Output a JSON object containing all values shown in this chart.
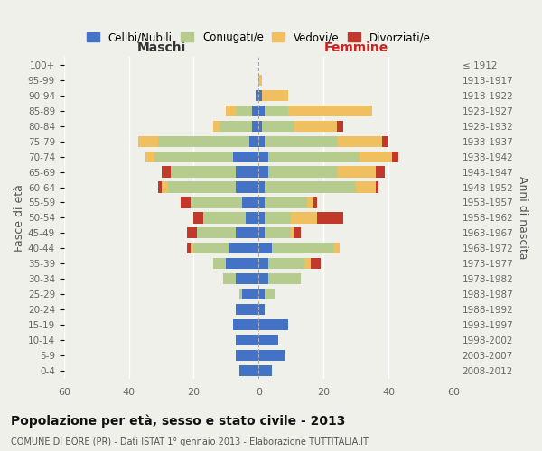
{
  "age_groups": [
    "0-4",
    "5-9",
    "10-14",
    "15-19",
    "20-24",
    "25-29",
    "30-34",
    "35-39",
    "40-44",
    "45-49",
    "50-54",
    "55-59",
    "60-64",
    "65-69",
    "70-74",
    "75-79",
    "80-84",
    "85-89",
    "90-94",
    "95-99",
    "100+"
  ],
  "birth_years": [
    "2008-2012",
    "2003-2007",
    "1998-2002",
    "1993-1997",
    "1988-1992",
    "1983-1987",
    "1978-1982",
    "1973-1977",
    "1968-1972",
    "1963-1967",
    "1958-1962",
    "1953-1957",
    "1948-1952",
    "1943-1947",
    "1938-1942",
    "1933-1937",
    "1928-1932",
    "1923-1927",
    "1918-1922",
    "1913-1917",
    "≤ 1912"
  ],
  "colors": {
    "celibe": "#4472C4",
    "coniugato": "#b5cc8e",
    "vedovo": "#f0c060",
    "divorziato": "#c0392b"
  },
  "maschi": {
    "celibe": [
      6,
      7,
      7,
      8,
      7,
      5,
      7,
      10,
      9,
      7,
      4,
      5,
      7,
      7,
      8,
      3,
      2,
      2,
      1,
      0,
      0
    ],
    "coniugato": [
      0,
      0,
      0,
      0,
      0,
      1,
      4,
      4,
      11,
      12,
      13,
      16,
      21,
      20,
      24,
      28,
      10,
      5,
      0,
      0,
      0
    ],
    "vedovo": [
      0,
      0,
      0,
      0,
      0,
      0,
      0,
      0,
      1,
      0,
      0,
      0,
      2,
      0,
      3,
      6,
      2,
      3,
      0,
      0,
      0
    ],
    "divorziato": [
      0,
      0,
      0,
      0,
      0,
      0,
      0,
      0,
      1,
      3,
      3,
      3,
      1,
      3,
      0,
      0,
      0,
      0,
      0,
      0,
      0
    ]
  },
  "femmine": {
    "nubile": [
      4,
      8,
      6,
      9,
      2,
      2,
      3,
      3,
      4,
      2,
      2,
      2,
      2,
      3,
      3,
      2,
      1,
      2,
      1,
      0,
      0
    ],
    "coniugata": [
      0,
      0,
      0,
      0,
      0,
      3,
      10,
      11,
      19,
      8,
      8,
      13,
      28,
      21,
      28,
      22,
      10,
      7,
      0,
      0,
      0
    ],
    "vedova": [
      0,
      0,
      0,
      0,
      0,
      0,
      0,
      2,
      2,
      1,
      8,
      2,
      6,
      12,
      10,
      14,
      13,
      26,
      8,
      1,
      0
    ],
    "divorziata": [
      0,
      0,
      0,
      0,
      0,
      0,
      0,
      3,
      0,
      2,
      8,
      1,
      1,
      3,
      2,
      2,
      2,
      0,
      0,
      0,
      0
    ]
  },
  "xlim": 60,
  "title": "Popolazione per età, sesso e stato civile - 2013",
  "subtitle": "COMUNE DI BORE (PR) - Dati ISTAT 1° gennaio 2013 - Elaborazione TUTTITALIA.IT",
  "ylabel_left": "Fasce di età",
  "ylabel_right": "Anni di nascita",
  "xlabel_left": "Maschi",
  "xlabel_right": "Femmine",
  "legend_labels": [
    "Celibi/Nubili",
    "Coniugati/e",
    "Vedovi/e",
    "Divorziati/e"
  ],
  "bg_color": "#f0f0eb"
}
